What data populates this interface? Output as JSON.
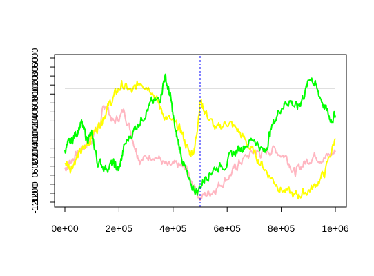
{
  "chart_data": {
    "type": "line",
    "title": "",
    "xlabel": "",
    "ylabel": "",
    "xlim": [
      0,
      1000000
    ],
    "x_ticks": [
      0,
      200000,
      400000,
      600000,
      800000,
      1000000
    ],
    "x_tick_labels": [
      "0e+00",
      "2e+05",
      "4e+05",
      "6e+05",
      "8e+05",
      "1e+06"
    ],
    "y_axis_left_overlapping_labels": [
      "6000",
      "8000",
      "2000",
      "1000",
      "800",
      "600",
      "400",
      "200",
      "1000",
      "400",
      "2000",
      "200",
      "600",
      "0",
      "0",
      "1200",
      "-1200"
    ],
    "reference_lines": [
      {
        "kind": "horizontal",
        "color": "#000000",
        "level_fraction_of_plot_height": 0.78
      },
      {
        "kind": "vertical",
        "color": "#0000ff",
        "style": "dotted",
        "x": 500000
      }
    ],
    "grid": false,
    "legend": "none",
    "series": [
      {
        "color": "#ffb6c1",
        "values": [
          {
            "x": 0,
            "y": 0.25
          },
          {
            "x": 20000,
            "y": 0.3
          },
          {
            "x": 50000,
            "y": 0.36
          },
          {
            "x": 80000,
            "y": 0.42
          },
          {
            "x": 100000,
            "y": 0.45
          },
          {
            "x": 130000,
            "y": 0.55
          },
          {
            "x": 150000,
            "y": 0.68
          },
          {
            "x": 180000,
            "y": 0.55
          },
          {
            "x": 220000,
            "y": 0.63
          },
          {
            "x": 260000,
            "y": 0.4
          },
          {
            "x": 280000,
            "y": 0.3
          },
          {
            "x": 330000,
            "y": 0.35
          },
          {
            "x": 380000,
            "y": 0.26
          },
          {
            "x": 420000,
            "y": 0.27
          },
          {
            "x": 450000,
            "y": 0.25
          },
          {
            "x": 500000,
            "y": 0.06
          },
          {
            "x": 540000,
            "y": 0.1
          },
          {
            "x": 580000,
            "y": 0.16
          },
          {
            "x": 620000,
            "y": 0.23
          },
          {
            "x": 650000,
            "y": 0.3
          },
          {
            "x": 700000,
            "y": 0.36
          },
          {
            "x": 730000,
            "y": 0.35
          },
          {
            "x": 770000,
            "y": 0.38
          },
          {
            "x": 820000,
            "y": 0.33
          },
          {
            "x": 850000,
            "y": 0.22
          },
          {
            "x": 880000,
            "y": 0.28
          },
          {
            "x": 920000,
            "y": 0.34
          },
          {
            "x": 960000,
            "y": 0.32
          },
          {
            "x": 1000000,
            "y": 0.36
          }
        ]
      },
      {
        "color": "#ffff00",
        "values": [
          {
            "x": 0,
            "y": 0.3
          },
          {
            "x": 20000,
            "y": 0.26
          },
          {
            "x": 50000,
            "y": 0.34
          },
          {
            "x": 80000,
            "y": 0.4
          },
          {
            "x": 100000,
            "y": 0.47
          },
          {
            "x": 130000,
            "y": 0.55
          },
          {
            "x": 150000,
            "y": 0.62
          },
          {
            "x": 180000,
            "y": 0.72
          },
          {
            "x": 210000,
            "y": 0.8
          },
          {
            "x": 250000,
            "y": 0.75
          },
          {
            "x": 280000,
            "y": 0.83
          },
          {
            "x": 320000,
            "y": 0.78
          },
          {
            "x": 360000,
            "y": 0.62
          },
          {
            "x": 400000,
            "y": 0.55
          },
          {
            "x": 430000,
            "y": 0.5
          },
          {
            "x": 460000,
            "y": 0.35
          },
          {
            "x": 480000,
            "y": 0.38
          },
          {
            "x": 500000,
            "y": 0.7
          },
          {
            "x": 520000,
            "y": 0.62
          },
          {
            "x": 560000,
            "y": 0.5
          },
          {
            "x": 600000,
            "y": 0.56
          },
          {
            "x": 640000,
            "y": 0.5
          },
          {
            "x": 680000,
            "y": 0.4
          },
          {
            "x": 720000,
            "y": 0.3
          },
          {
            "x": 760000,
            "y": 0.2
          },
          {
            "x": 800000,
            "y": 0.12
          },
          {
            "x": 850000,
            "y": 0.07
          },
          {
            "x": 880000,
            "y": 0.09
          },
          {
            "x": 920000,
            "y": 0.13
          },
          {
            "x": 960000,
            "y": 0.22
          },
          {
            "x": 1000000,
            "y": 0.45
          }
        ]
      },
      {
        "color": "#00ff00",
        "values": [
          {
            "x": 0,
            "y": 0.38
          },
          {
            "x": 20000,
            "y": 0.42
          },
          {
            "x": 40000,
            "y": 0.48
          },
          {
            "x": 60000,
            "y": 0.55
          },
          {
            "x": 80000,
            "y": 0.45
          },
          {
            "x": 100000,
            "y": 0.47
          },
          {
            "x": 120000,
            "y": 0.3
          },
          {
            "x": 150000,
            "y": 0.26
          },
          {
            "x": 180000,
            "y": 0.28
          },
          {
            "x": 200000,
            "y": 0.24
          },
          {
            "x": 220000,
            "y": 0.4
          },
          {
            "x": 260000,
            "y": 0.52
          },
          {
            "x": 290000,
            "y": 0.6
          },
          {
            "x": 320000,
            "y": 0.68
          },
          {
            "x": 350000,
            "y": 0.7
          },
          {
            "x": 370000,
            "y": 0.86
          },
          {
            "x": 390000,
            "y": 0.72
          },
          {
            "x": 410000,
            "y": 0.48
          },
          {
            "x": 430000,
            "y": 0.35
          },
          {
            "x": 460000,
            "y": 0.15
          },
          {
            "x": 490000,
            "y": 0.1
          },
          {
            "x": 520000,
            "y": 0.2
          },
          {
            "x": 550000,
            "y": 0.25
          },
          {
            "x": 590000,
            "y": 0.28
          },
          {
            "x": 630000,
            "y": 0.36
          },
          {
            "x": 660000,
            "y": 0.4
          },
          {
            "x": 700000,
            "y": 0.45
          },
          {
            "x": 740000,
            "y": 0.35
          },
          {
            "x": 760000,
            "y": 0.5
          },
          {
            "x": 800000,
            "y": 0.66
          },
          {
            "x": 830000,
            "y": 0.7
          },
          {
            "x": 860000,
            "y": 0.65
          },
          {
            "x": 880000,
            "y": 0.72
          },
          {
            "x": 910000,
            "y": 0.86
          },
          {
            "x": 930000,
            "y": 0.78
          },
          {
            "x": 960000,
            "y": 0.66
          },
          {
            "x": 980000,
            "y": 0.58
          },
          {
            "x": 1000000,
            "y": 0.6
          }
        ]
      }
    ]
  }
}
